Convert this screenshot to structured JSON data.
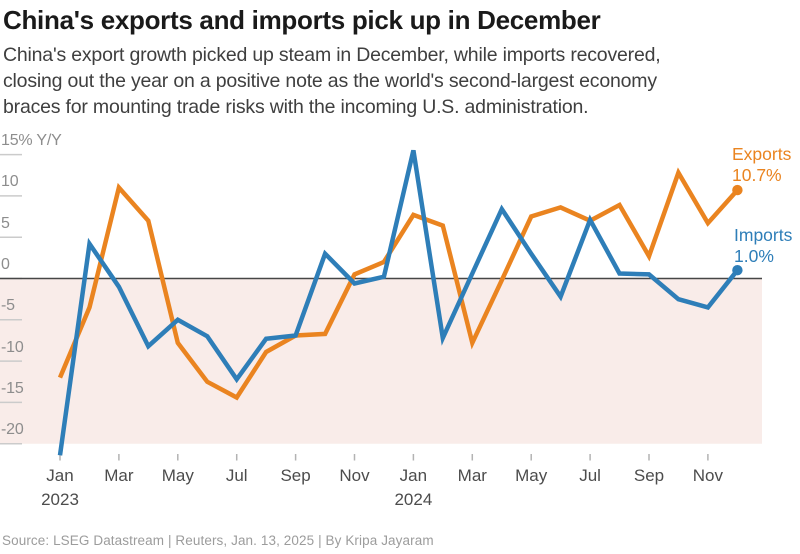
{
  "header": {
    "title": "China's exports and imports pick up in December",
    "subtitle_lines": [
      "China's export growth picked up steam in December, while imports recovered,",
      "closing out the year on a positive note as the world's second-largest economy",
      "braces for mounting trade risks with the incoming U.S. administration."
    ]
  },
  "footer": {
    "source": "Source: LSEG Datastream  |  Reuters, Jan. 13, 2025  |  By Kripa Jayaram"
  },
  "chart_data": {
    "type": "line",
    "title": "China's exports and imports pick up in December",
    "unit": "% change year-over-year",
    "x": [
      "Jan 2023",
      "Feb 2023",
      "Mar 2023",
      "Apr 2023",
      "May 2023",
      "Jun 2023",
      "Jul 2023",
      "Aug 2023",
      "Sep 2023",
      "Oct 2023",
      "Nov 2023",
      "Dec 2023",
      "Jan 2024",
      "Feb 2024",
      "Mar 2024",
      "Apr 2024",
      "May 2024",
      "Jun 2024",
      "Jul 2024",
      "Aug 2024",
      "Sep 2024",
      "Oct 2024",
      "Nov 2024",
      "Dec 2024"
    ],
    "series": [
      {
        "name": "Exports",
        "color": "#EA8420",
        "values": [
          -12.0,
          -3.5,
          11.0,
          7.0,
          -7.8,
          -12.5,
          -14.4,
          -8.9,
          -6.9,
          -6.7,
          0.5,
          2.0,
          7.7,
          6.4,
          -7.8,
          -0.2,
          7.5,
          8.6,
          7.0,
          8.9,
          2.7,
          12.8,
          6.7,
          10.7
        ]
      },
      {
        "name": "Imports",
        "color": "#2E7EB8",
        "values": [
          -21.4,
          4.2,
          -1.0,
          -8.2,
          -5.0,
          -7.0,
          -12.2,
          -7.3,
          -6.9,
          3.0,
          -0.6,
          0.2,
          15.5,
          -7.2,
          0.6,
          8.4,
          3.0,
          -2.2,
          7.1,
          0.6,
          0.5,
          -2.5,
          -3.5,
          1.0
        ]
      }
    ],
    "ylim": [
      -20,
      15
    ],
    "yticks": [
      15,
      10,
      5,
      0,
      -5,
      -10,
      -15,
      -20
    ],
    "ytick_labels": [
      "15% Y/Y",
      "10",
      "5",
      "0",
      "-5",
      "-10",
      "-15",
      "-20"
    ],
    "xtick_months": [
      0,
      2,
      4,
      6,
      8,
      10,
      12,
      14,
      16,
      18,
      20,
      22
    ],
    "xtick_labels": [
      "Jan",
      "Mar",
      "May",
      "Jul",
      "Sep",
      "Nov",
      "Jan",
      "Mar",
      "May",
      "Jul",
      "Sep",
      "Nov"
    ],
    "year_labels": [
      {
        "text": "2023",
        "month_index": 0
      },
      {
        "text": "2024",
        "month_index": 12
      }
    ],
    "grid": "off",
    "legend_position": "right-of-line-ends",
    "negative_band_color": "#F9ECE9",
    "zero_line_color": "#464646",
    "end_labels": [
      {
        "series": "Exports",
        "label": "Exports",
        "value_label": "10.7%"
      },
      {
        "series": "Imports",
        "label": "Imports",
        "value_label": "1.0%"
      }
    ]
  }
}
